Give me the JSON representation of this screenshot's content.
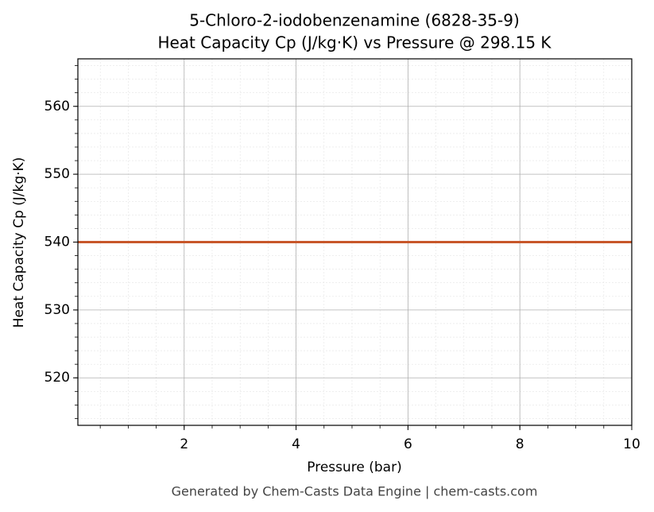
{
  "chart_data": {
    "type": "line",
    "title": "5-Chloro-2-iodobenzenamine (6828-35-9)",
    "subtitle": "Heat Capacity Cp (J/kg·K) vs Pressure @ 298.15 K",
    "x_label": "Pressure (bar)",
    "y_label": "Heat Capacity Cp (J/kg·K)",
    "footer": "Generated by Chem-Casts Data Engine | chem-casts.com",
    "x": [
      0.1,
      10
    ],
    "series": [
      {
        "name": "Cp",
        "color": "#c8572a",
        "values": [
          540,
          540
        ]
      }
    ],
    "xlim": [
      0.1,
      10
    ],
    "ylim": [
      513,
      567
    ],
    "xticks": [
      2,
      4,
      6,
      8,
      10
    ],
    "yticks": [
      520,
      530,
      540,
      550,
      560
    ],
    "grid": true
  }
}
